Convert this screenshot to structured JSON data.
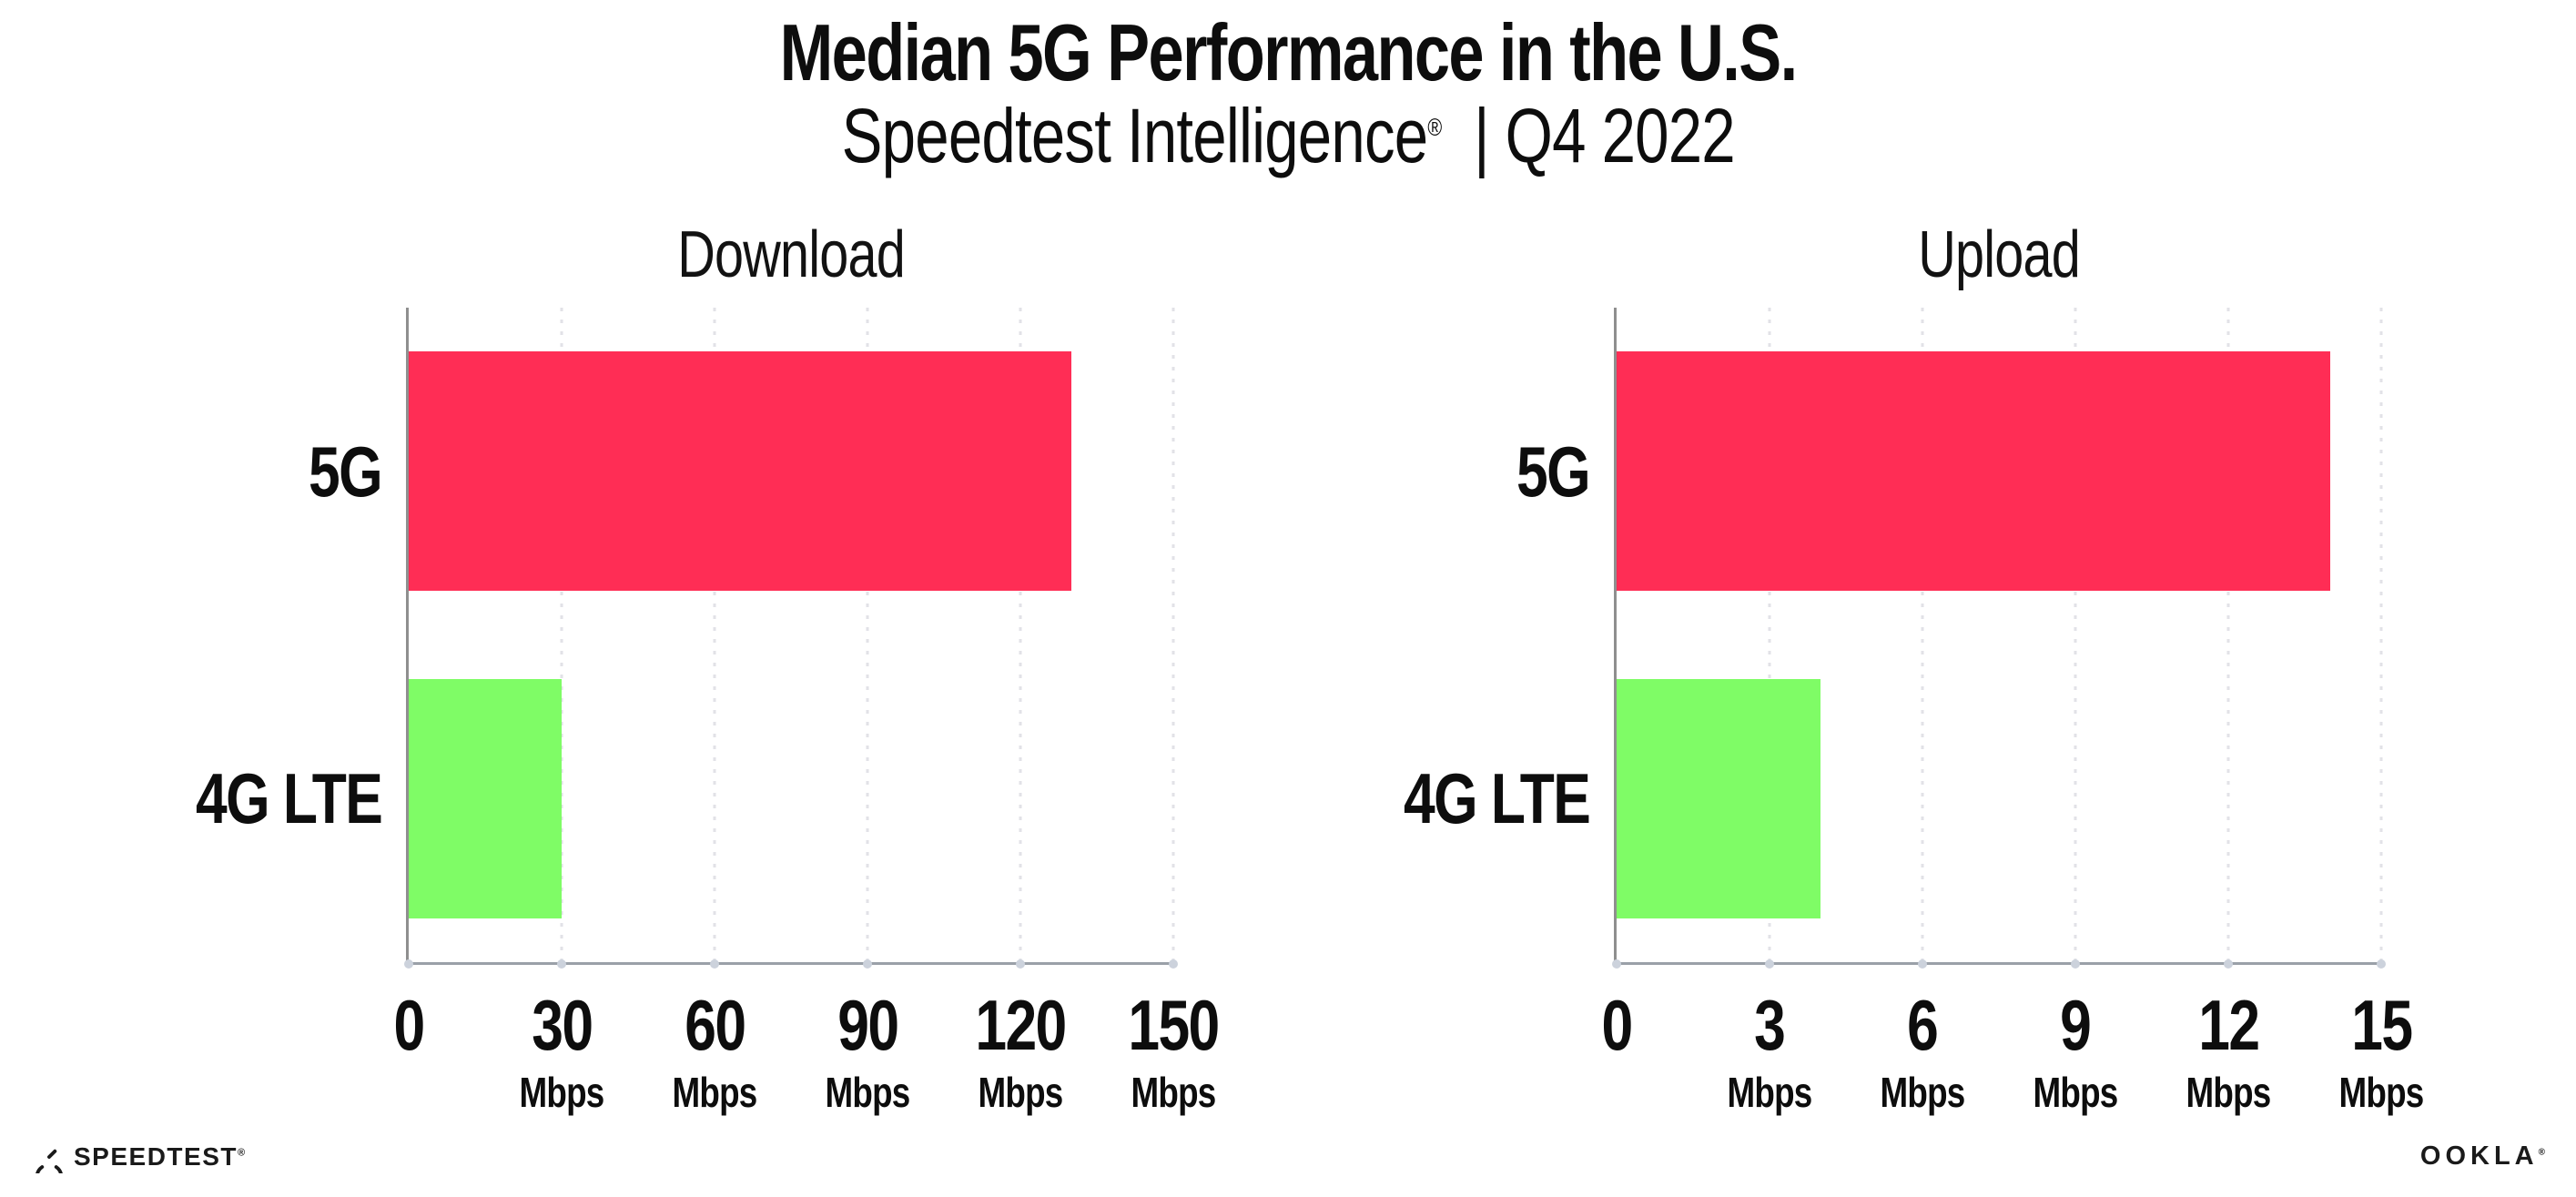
{
  "title": "Median 5G Performance in the U.S.",
  "subtitle": {
    "brand": "Speedtest Intelligence",
    "mark": "®",
    "rest": "| Q4 2022"
  },
  "chart_data": [
    {
      "type": "bar",
      "orientation": "horizontal",
      "title": "Download",
      "categories": [
        "5G",
        "4G LTE"
      ],
      "values": [
        130,
        30
      ],
      "unit": "Mbps",
      "xlabel": "",
      "ylabel": "",
      "xlim": [
        0,
        150
      ],
      "x_ticks": [
        0,
        30,
        60,
        90,
        120,
        150
      ],
      "bar_colors": [
        "#FF2D55",
        "#7FFC66"
      ],
      "grid": "vertical-dotted",
      "legend": "none"
    },
    {
      "type": "bar",
      "orientation": "horizontal",
      "title": "Upload",
      "categories": [
        "5G",
        "4G LTE"
      ],
      "values": [
        14,
        4
      ],
      "unit": "Mbps",
      "xlabel": "",
      "ylabel": "",
      "xlim": [
        0,
        15
      ],
      "x_ticks": [
        0,
        3,
        6,
        9,
        12,
        15
      ],
      "bar_colors": [
        "#FF2D55",
        "#7FFC66"
      ],
      "grid": "vertical-dotted",
      "legend": "none"
    }
  ],
  "footer": {
    "speedtest": "SPEEDTEST",
    "speedtest_mark": "®",
    "ookla": "OOKLA",
    "ookla_mark": "®"
  },
  "colors": {
    "bar_5g": "#FF2D55",
    "bar_4g_lte": "#7FFC66",
    "axis": "#8F8F8F",
    "gridline": "#E2E2E7",
    "tick_dot": "#CCD2DC",
    "text": "#0D0D0D",
    "background": "#FFFFFF"
  }
}
